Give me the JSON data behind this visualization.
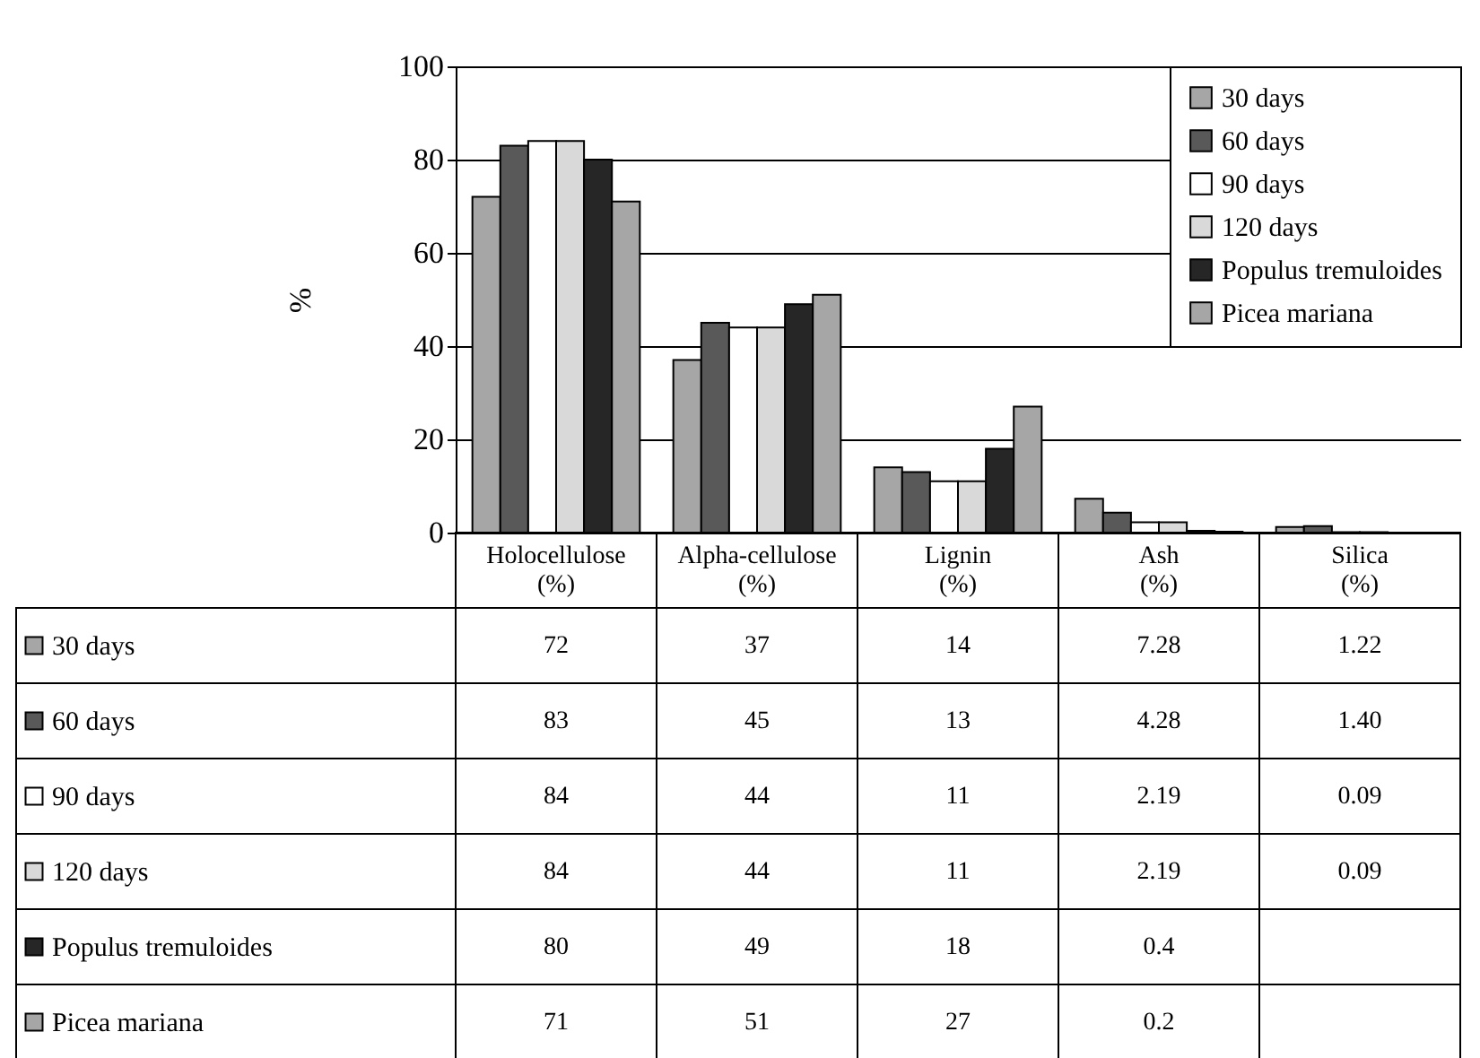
{
  "chart_data": {
    "type": "bar",
    "ylabel": "%",
    "categories": [
      "Holocellulose (%)",
      "Alpha-cellulose (%)",
      "Lignin (%)",
      "Ash (%)",
      "Silica (%)"
    ],
    "ylim": [
      0,
      100
    ],
    "yticks": [
      0,
      20,
      40,
      60,
      80,
      100
    ],
    "grid": "y",
    "legend": "top right",
    "series": [
      {
        "name": "30 days",
        "color": "#a6a6a6",
        "values": [
          72,
          37,
          14,
          7.28,
          1.22
        ],
        "value_labels": [
          "72",
          "37",
          "14",
          "7.28",
          "1.22"
        ]
      },
      {
        "name": "60 days",
        "color": "#595959",
        "values": [
          83,
          45,
          13,
          4.28,
          1.4
        ],
        "value_labels": [
          "83",
          "45",
          "13",
          "4.28",
          "1.40"
        ]
      },
      {
        "name": "90 days",
        "color": "#ffffff",
        "values": [
          84,
          44,
          11,
          2.19,
          0.09
        ],
        "value_labels": [
          "84",
          "44",
          "11",
          "2.19",
          "0.09"
        ]
      },
      {
        "name": "120 days",
        "color": "#d9d9d9",
        "values": [
          84,
          44,
          11,
          2.19,
          0.09
        ],
        "value_labels": [
          "84",
          "44",
          "11",
          "2.19",
          "0.09"
        ]
      },
      {
        "name": "Populus tremuloides",
        "color": "#262626",
        "values": [
          80,
          49,
          18,
          0.4,
          null
        ],
        "value_labels": [
          "80",
          "49",
          "18",
          "0.4",
          null
        ]
      },
      {
        "name": "Picea mariana",
        "color": "#a6a6a6",
        "values": [
          71,
          51,
          27,
          0.2,
          null
        ],
        "value_labels": [
          "71",
          "51",
          "27",
          "0.2",
          null
        ]
      }
    ]
  }
}
